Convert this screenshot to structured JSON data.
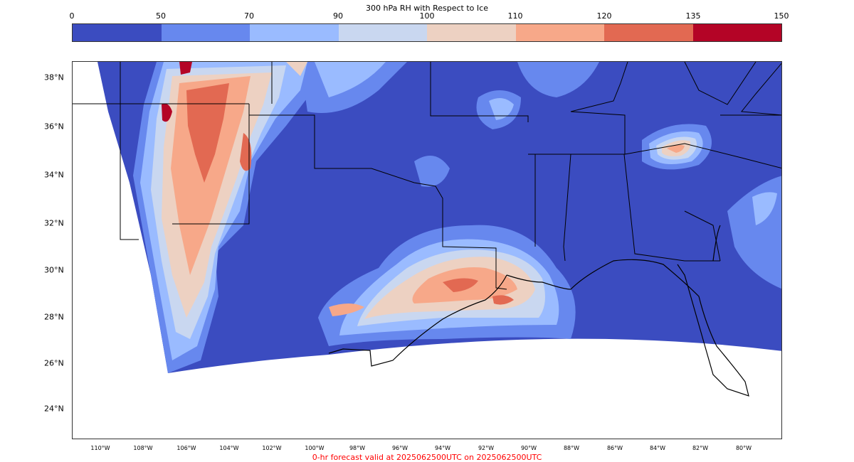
{
  "colorbar": {
    "title": "300 hPa RH with Respect to Ice",
    "ticks": [
      "0",
      "50",
      "70",
      "90",
      "100",
      "110",
      "120",
      "135",
      "150"
    ],
    "colors": [
      "#3b4cc0",
      "#6788ee",
      "#9abbff",
      "#c9d7f0",
      "#edd1c2",
      "#f7a889",
      "#e26952",
      "#b40426"
    ]
  },
  "axes": {
    "lat_labels": [
      "38°N",
      "36°N",
      "34°N",
      "32°N",
      "30°N",
      "28°N",
      "26°N",
      "24°N"
    ],
    "lon_labels": [
      "110°W",
      "108°W",
      "106°W",
      "104°W",
      "102°W",
      "100°W",
      "98°W",
      "96°W",
      "94°W",
      "92°W",
      "90°W",
      "88°W",
      "86°W",
      "84°W",
      "82°W",
      "80°W"
    ]
  },
  "footer": {
    "text": "0-hr forecast valid at 2025062500UTC on 2025062500UTC",
    "color": "#ff0000"
  }
}
